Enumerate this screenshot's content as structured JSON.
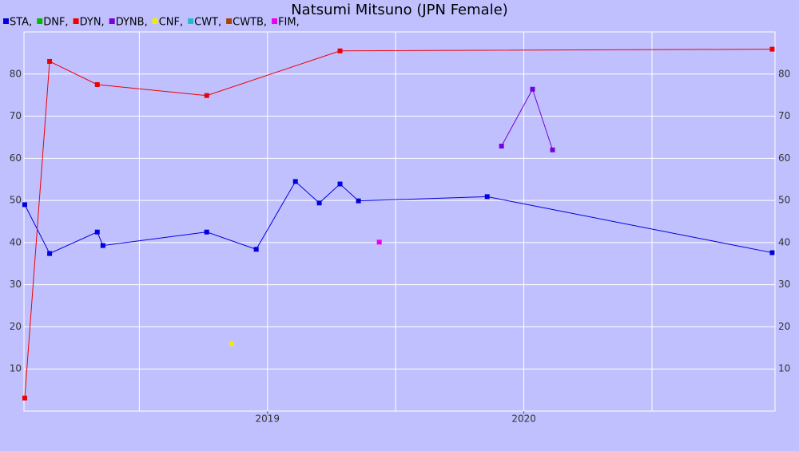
{
  "chart_data": {
    "type": "line",
    "title": "Natsumi Mitsuno (JPN Female)",
    "xlim": [
      2018.05,
      2020.98
    ],
    "xticks": [
      2019,
      2020
    ],
    "xgrid": [
      2018.5,
      2019,
      2019.5,
      2020,
      2020.5
    ],
    "ylim": [
      0,
      90
    ],
    "yticks": [
      10,
      20,
      30,
      40,
      50,
      60,
      70,
      80
    ],
    "grid": true,
    "series": [
      {
        "name": "STA,",
        "color": "#0000dd",
        "x": [
          2018.053,
          2018.15,
          2018.336,
          2018.358,
          2018.763,
          2018.956,
          2019.109,
          2019.202,
          2019.283,
          2019.355,
          2019.857,
          2020.969
        ],
        "values": [
          49,
          37.4,
          42.5,
          39.3,
          42.5,
          38.4,
          54.5,
          49.4,
          53.9,
          49.9,
          50.9,
          37.6
        ]
      },
      {
        "name": "DNF,",
        "color": "#00bb00",
        "x": [],
        "values": []
      },
      {
        "name": "DYN,",
        "color": "#ee0000",
        "x": [
          2018.053,
          2018.15,
          2018.336,
          2018.763,
          2019.283,
          2020.969
        ],
        "values": [
          3.1,
          83.0,
          77.5,
          74.9,
          85.5,
          85.9
        ]
      },
      {
        "name": "DYNB,",
        "color": "#7700dd",
        "x": [
          2019.913,
          2020.034,
          2020.112
        ],
        "values": [
          62.9,
          76.4,
          62.0
        ]
      },
      {
        "name": "CNF,",
        "color": "#eeee00",
        "x": [
          2018.86
        ],
        "values": [
          16.0
        ]
      },
      {
        "name": "CWT,",
        "color": "#22bbcc",
        "x": [],
        "values": []
      },
      {
        "name": "CWTB,",
        "color": "#aa4400",
        "x": [],
        "values": []
      },
      {
        "name": "FIM,",
        "color": "#ee00ee",
        "x": [
          2019.436
        ],
        "values": [
          40.1
        ]
      }
    ]
  }
}
